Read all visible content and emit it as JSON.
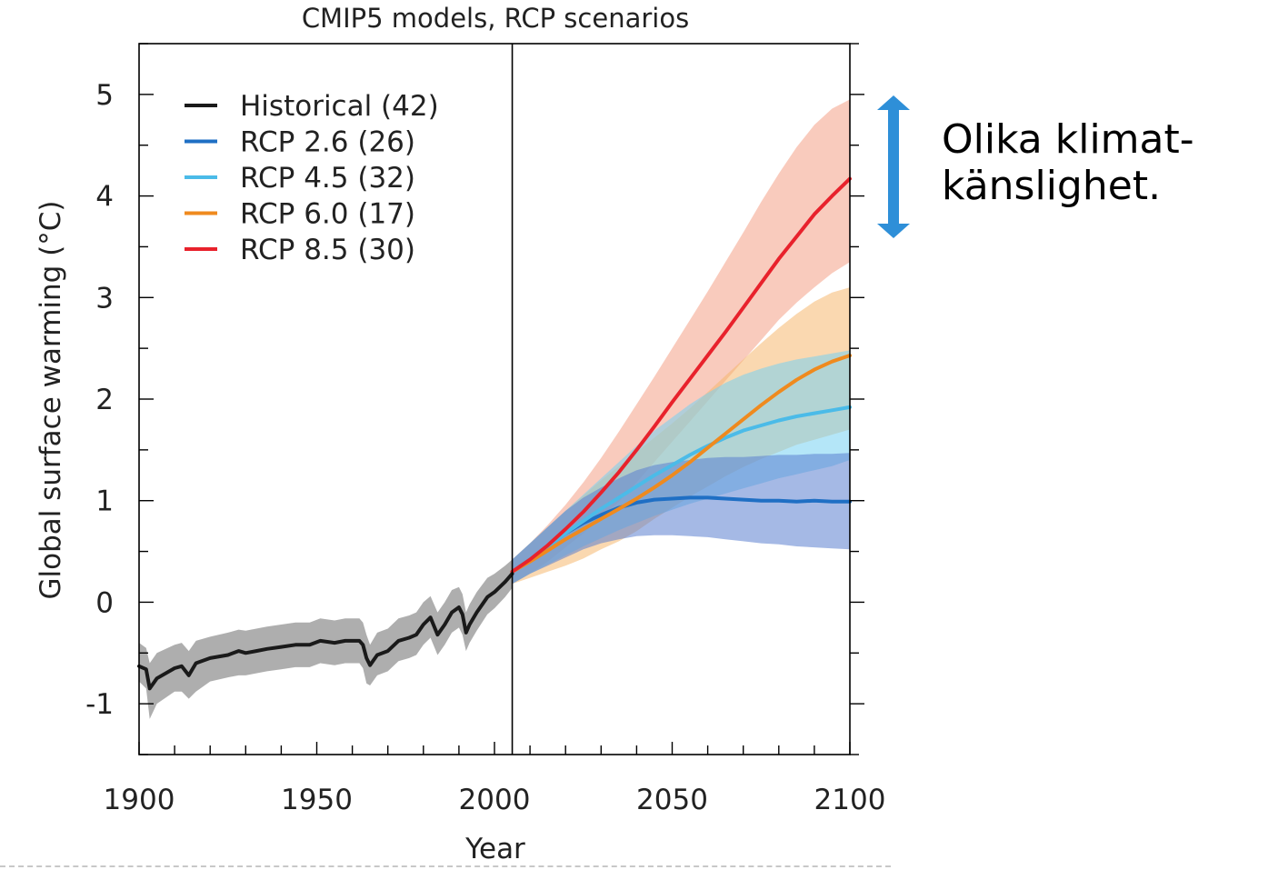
{
  "chart_data": {
    "type": "line",
    "title": "CMIP5 models, RCP scenarios",
    "xlabel": "Year",
    "ylabel": "Global surface warming (°C)",
    "xlim": [
      1900,
      2100
    ],
    "ylim": [
      -1.5,
      5.5
    ],
    "x_ticks": [
      1900,
      1950,
      2000,
      2050,
      2100
    ],
    "y_ticks": [
      -1,
      0,
      1,
      2,
      3,
      4,
      5
    ],
    "divider_year": 2005,
    "legend_position": "top-left",
    "series": [
      {
        "name": "Historical (42)",
        "color": "#1a1a1a",
        "band_color": "#a0a0a0",
        "x": [
          1900,
          1902,
          1903,
          1905,
          1910,
          1912,
          1914,
          1916,
          1920,
          1925,
          1928,
          1930,
          1933,
          1936,
          1940,
          1944,
          1948,
          1951,
          1955,
          1958,
          1962,
          1963,
          1964,
          1965,
          1967,
          1970,
          1973,
          1976,
          1978,
          1980,
          1982,
          1984,
          1986,
          1988,
          1990,
          1991,
          1992,
          1993,
          1995,
          1998,
          2000,
          2003,
          2005
        ],
        "y": [
          -0.63,
          -0.66,
          -0.85,
          -0.75,
          -0.65,
          -0.63,
          -0.72,
          -0.6,
          -0.55,
          -0.52,
          -0.48,
          -0.5,
          -0.48,
          -0.46,
          -0.44,
          -0.42,
          -0.42,
          -0.38,
          -0.4,
          -0.38,
          -0.38,
          -0.42,
          -0.55,
          -0.62,
          -0.52,
          -0.48,
          -0.38,
          -0.35,
          -0.32,
          -0.22,
          -0.15,
          -0.32,
          -0.22,
          -0.1,
          -0.05,
          -0.12,
          -0.3,
          -0.22,
          -0.1,
          0.05,
          0.1,
          0.2,
          0.28
        ],
        "lower": [
          -0.78,
          -0.85,
          -1.15,
          -1.0,
          -0.88,
          -0.88,
          -0.95,
          -0.88,
          -0.78,
          -0.74,
          -0.72,
          -0.72,
          -0.7,
          -0.68,
          -0.66,
          -0.64,
          -0.64,
          -0.6,
          -0.62,
          -0.6,
          -0.6,
          -0.65,
          -0.8,
          -0.82,
          -0.72,
          -0.68,
          -0.58,
          -0.55,
          -0.52,
          -0.42,
          -0.35,
          -0.52,
          -0.42,
          -0.3,
          -0.25,
          -0.32,
          -0.48,
          -0.4,
          -0.28,
          -0.12,
          -0.06,
          0.05,
          0.14
        ],
        "upper": [
          -0.4,
          -0.45,
          -0.6,
          -0.5,
          -0.42,
          -0.4,
          -0.48,
          -0.38,
          -0.34,
          -0.3,
          -0.27,
          -0.28,
          -0.26,
          -0.24,
          -0.22,
          -0.2,
          -0.2,
          -0.16,
          -0.18,
          -0.16,
          -0.16,
          -0.2,
          -0.32,
          -0.42,
          -0.3,
          -0.26,
          -0.16,
          -0.13,
          -0.1,
          0.0,
          0.06,
          -0.1,
          0.0,
          0.12,
          0.15,
          0.08,
          -0.1,
          -0.02,
          0.1,
          0.24,
          0.28,
          0.36,
          0.42
        ]
      },
      {
        "name": "RCP 2.6 (26)",
        "color": "#1f6fc4",
        "band_color": "#5b7fd0",
        "x": [
          2005,
          2010,
          2015,
          2020,
          2025,
          2030,
          2035,
          2040,
          2045,
          2050,
          2055,
          2060,
          2065,
          2070,
          2075,
          2080,
          2085,
          2090,
          2095,
          2100
        ],
        "y": [
          0.3,
          0.42,
          0.55,
          0.68,
          0.78,
          0.86,
          0.93,
          0.98,
          1.01,
          1.02,
          1.03,
          1.03,
          1.02,
          1.01,
          1.0,
          1.0,
          0.99,
          1.0,
          0.99,
          0.99
        ],
        "lower": [
          0.18,
          0.28,
          0.36,
          0.44,
          0.52,
          0.58,
          0.62,
          0.65,
          0.66,
          0.66,
          0.65,
          0.64,
          0.62,
          0.6,
          0.58,
          0.57,
          0.55,
          0.54,
          0.53,
          0.52
        ],
        "upper": [
          0.42,
          0.58,
          0.74,
          0.9,
          1.03,
          1.13,
          1.22,
          1.3,
          1.35,
          1.38,
          1.4,
          1.42,
          1.43,
          1.43,
          1.44,
          1.45,
          1.45,
          1.46,
          1.46,
          1.47
        ]
      },
      {
        "name": "RCP 4.5 (32)",
        "color": "#4bbbe8",
        "band_color": "#77d1f2",
        "x": [
          2005,
          2010,
          2015,
          2020,
          2025,
          2030,
          2035,
          2040,
          2045,
          2050,
          2055,
          2060,
          2065,
          2070,
          2075,
          2080,
          2085,
          2090,
          2095,
          2100
        ],
        "y": [
          0.3,
          0.42,
          0.55,
          0.68,
          0.8,
          0.92,
          1.03,
          1.14,
          1.25,
          1.35,
          1.45,
          1.54,
          1.62,
          1.69,
          1.74,
          1.79,
          1.83,
          1.86,
          1.89,
          1.92
        ],
        "lower": [
          0.18,
          0.28,
          0.37,
          0.46,
          0.55,
          0.63,
          0.71,
          0.78,
          0.85,
          0.91,
          0.97,
          1.02,
          1.07,
          1.12,
          1.17,
          1.22,
          1.26,
          1.3,
          1.34,
          1.4
        ],
        "upper": [
          0.42,
          0.58,
          0.74,
          0.9,
          1.06,
          1.22,
          1.38,
          1.54,
          1.69,
          1.82,
          1.95,
          2.06,
          2.16,
          2.24,
          2.3,
          2.35,
          2.39,
          2.42,
          2.45,
          2.48
        ]
      },
      {
        "name": "RCP 6.0 (17)",
        "color": "#ef8a1e",
        "band_color": "#f6b870",
        "x": [
          2005,
          2010,
          2015,
          2020,
          2025,
          2030,
          2035,
          2040,
          2045,
          2050,
          2055,
          2060,
          2065,
          2070,
          2075,
          2080,
          2085,
          2090,
          2095,
          2100
        ],
        "y": [
          0.3,
          0.4,
          0.51,
          0.62,
          0.72,
          0.82,
          0.92,
          1.02,
          1.13,
          1.25,
          1.38,
          1.52,
          1.66,
          1.8,
          1.94,
          2.07,
          2.19,
          2.29,
          2.37,
          2.43
        ],
        "lower": [
          0.18,
          0.24,
          0.3,
          0.36,
          0.43,
          0.52,
          0.6,
          0.7,
          0.82,
          0.93,
          1.04,
          1.14,
          1.24,
          1.33,
          1.41,
          1.48,
          1.55,
          1.6,
          1.65,
          1.7
        ],
        "upper": [
          0.42,
          0.58,
          0.74,
          0.9,
          1.05,
          1.2,
          1.34,
          1.48,
          1.62,
          1.76,
          1.91,
          2.07,
          2.23,
          2.39,
          2.55,
          2.7,
          2.84,
          2.96,
          3.05,
          3.1
        ]
      },
      {
        "name": "RCP 8.5 (30)",
        "color": "#e8222c",
        "band_color": "#f4a086",
        "x": [
          2005,
          2010,
          2015,
          2020,
          2025,
          2030,
          2035,
          2040,
          2045,
          2050,
          2055,
          2060,
          2065,
          2070,
          2075,
          2080,
          2085,
          2090,
          2095,
          2100
        ],
        "y": [
          0.3,
          0.42,
          0.56,
          0.72,
          0.89,
          1.08,
          1.28,
          1.5,
          1.73,
          1.97,
          2.2,
          2.43,
          2.66,
          2.9,
          3.14,
          3.38,
          3.6,
          3.82,
          4.0,
          4.17
        ],
        "lower": [
          0.18,
          0.28,
          0.4,
          0.54,
          0.68,
          0.83,
          0.99,
          1.18,
          1.38,
          1.58,
          1.78,
          1.98,
          2.18,
          2.38,
          2.58,
          2.78,
          2.95,
          3.1,
          3.24,
          3.35
        ],
        "upper": [
          0.42,
          0.58,
          0.76,
          0.96,
          1.18,
          1.42,
          1.68,
          1.95,
          2.22,
          2.5,
          2.78,
          3.06,
          3.35,
          3.64,
          3.94,
          4.22,
          4.48,
          4.7,
          4.86,
          4.95
        ]
      }
    ]
  },
  "annotation": {
    "arrow_color": "#2e8fd8",
    "text_line1": "Olika klimat-",
    "text_line2": "känslighet."
  }
}
